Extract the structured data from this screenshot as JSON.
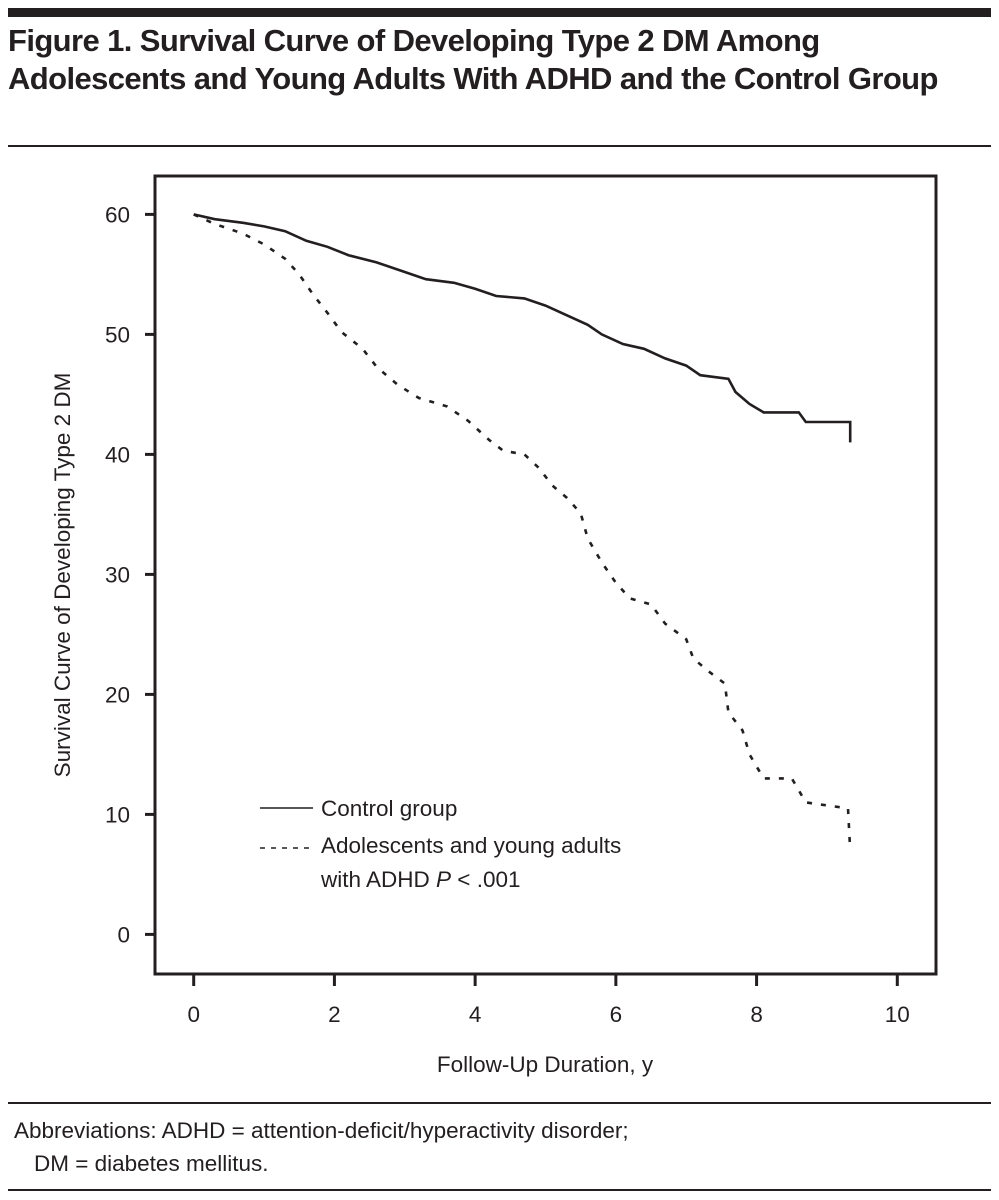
{
  "figure": {
    "title": "Figure 1. Survival Curve of Developing Type 2 DM Among Adolescents and Young Adults With ADHD and the Control Group",
    "abbreviations_line1": "Abbreviations: ADHD = attention-deficit/hyperactivity disorder;",
    "abbreviations_line2": "DM = diabetes mellitus."
  },
  "colors": {
    "ink": "#231f20",
    "background": "#ffffff"
  },
  "chart_data": {
    "type": "line",
    "title": "",
    "xlabel": "Follow-Up Duration, y",
    "ylabel": "Survival Curve of Developing Type 2 DM",
    "xlim": [
      -0.55,
      10.55
    ],
    "ylim": [
      -3.3,
      63.2
    ],
    "xticks": [
      0,
      2,
      4,
      6,
      8,
      10
    ],
    "xtick_labels": [
      "0",
      "2",
      "4",
      "6",
      "8",
      "10"
    ],
    "yticks": [
      0,
      10,
      20,
      30,
      40,
      50,
      60
    ],
    "ytick_labels": [
      "0",
      "10",
      "20",
      "30",
      "40",
      "50",
      "60"
    ],
    "grid": false,
    "legend_position": "bottom-left",
    "legend": [
      {
        "label": "Control group",
        "style": "solid"
      },
      {
        "label": "Adolescents and young adults",
        "label_line2_prefix": "with ADHD ",
        "label_line2_italic": "P",
        "label_line2_suffix": " < .001",
        "style": "dashed"
      }
    ],
    "series": [
      {
        "name": "Control group",
        "style": "solid",
        "x": [
          0,
          0.3,
          0.7,
          1.0,
          1.3,
          1.6,
          1.9,
          2.2,
          2.6,
          3.0,
          3.3,
          3.7,
          4.0,
          4.3,
          4.7,
          5.0,
          5.3,
          5.6,
          5.8,
          6.1,
          6.4,
          6.7,
          7.0,
          7.2,
          7.6,
          7.7,
          7.9,
          8.1,
          8.6,
          8.7,
          9.33,
          9.33
        ],
        "y": [
          60,
          59.6,
          59.3,
          59.0,
          58.6,
          57.8,
          57.3,
          56.6,
          56.0,
          55.2,
          54.6,
          54.3,
          53.8,
          53.2,
          53.0,
          52.4,
          51.6,
          50.8,
          50.0,
          49.2,
          48.8,
          48.0,
          47.4,
          46.6,
          46.3,
          45.2,
          44.2,
          43.5,
          43.5,
          42.7,
          42.7,
          41.0
        ]
      },
      {
        "name": "Adolescents and young adults with ADHD",
        "style": "dashed",
        "x": [
          0,
          0.3,
          0.7,
          1.0,
          1.3,
          1.5,
          1.7,
          1.9,
          2.1,
          2.4,
          2.6,
          2.9,
          3.2,
          3.6,
          3.9,
          4.2,
          4.4,
          4.7,
          4.9,
          5.1,
          5.3,
          5.5,
          5.6,
          5.8,
          6.0,
          6.2,
          6.5,
          6.7,
          7.0,
          7.1,
          7.3,
          7.55,
          7.6,
          7.8,
          7.9,
          8.1,
          8.5,
          8.7,
          9.3,
          9.33
        ],
        "y": [
          60,
          59.2,
          58.4,
          57.5,
          56.3,
          55.0,
          53.3,
          51.8,
          50.2,
          48.8,
          47.3,
          45.8,
          44.7,
          44.0,
          42.8,
          41.2,
          40.3,
          40.0,
          38.9,
          37.4,
          36.4,
          35.1,
          33.0,
          31.0,
          29.3,
          28.0,
          27.5,
          25.9,
          24.6,
          23.0,
          22.0,
          20.9,
          18.5,
          17.0,
          15.0,
          13.0,
          13.0,
          11.0,
          10.5,
          7.0
        ]
      }
    ]
  }
}
